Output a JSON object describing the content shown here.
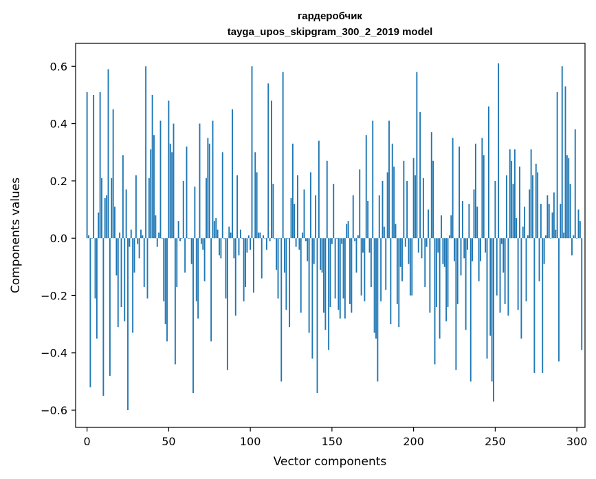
{
  "chart_data": {
    "type": "bar",
    "title": "гардеробчик",
    "subtitle": "tayga_upos_skipgram_300_2_2019 model",
    "xlabel": "Vector components",
    "ylabel": "Components values",
    "xlim": [
      -7,
      305
    ],
    "ylim": [
      -0.66,
      0.68
    ],
    "xticks": [
      0,
      50,
      100,
      150,
      200,
      250,
      300
    ],
    "xtick_labels": [
      "0",
      "50",
      "100",
      "150",
      "200",
      "250",
      "300"
    ],
    "yticks": [
      -0.6,
      -0.4,
      -0.2,
      0.0,
      0.2,
      0.4,
      0.6
    ],
    "ytick_labels": [
      "−0.6",
      "−0.4",
      "−0.2",
      "0.0",
      "0.2",
      "0.4",
      "0.6"
    ],
    "bar_color": "#1f77b4",
    "grid": false,
    "values": [
      0.51,
      0.01,
      -0.52,
      0.0,
      0.5,
      -0.21,
      -0.35,
      0.09,
      0.51,
      0.21,
      -0.55,
      0.14,
      0.15,
      0.59,
      -0.48,
      0.21,
      0.45,
      0.11,
      -0.13,
      -0.31,
      0.02,
      -0.24,
      0.29,
      -0.29,
      0.17,
      -0.6,
      -0.03,
      0.03,
      -0.33,
      -0.12,
      0.22,
      -0.02,
      -0.07,
      0.03,
      0.01,
      -0.17,
      0.6,
      -0.21,
      0.21,
      0.31,
      0.5,
      0.36,
      0.08,
      -0.03,
      0.02,
      0.41,
      0.0,
      -0.22,
      -0.3,
      -0.36,
      0.48,
      0.33,
      0.3,
      0.4,
      -0.44,
      -0.17,
      0.06,
      -0.01,
      0.0,
      0.2,
      -0.12,
      0.32,
      0.0,
      0.0,
      -0.09,
      -0.54,
      0.18,
      -0.22,
      -0.28,
      0.4,
      -0.02,
      -0.04,
      -0.15,
      0.21,
      0.35,
      0.33,
      -0.36,
      0.41,
      0.06,
      0.07,
      0.03,
      -0.06,
      -0.07,
      0.3,
      0.0,
      -0.21,
      -0.46,
      0.04,
      0.02,
      0.45,
      -0.07,
      -0.27,
      0.22,
      -0.06,
      0.03,
      0.0,
      -0.22,
      -0.17,
      -0.05,
      0.01,
      -0.04,
      0.6,
      -0.19,
      0.3,
      0.23,
      0.02,
      0.02,
      -0.14,
      0.01,
      0.0,
      -0.04,
      0.54,
      -0.01,
      0.48,
      0.19,
      0.0,
      -0.11,
      -0.21,
      0.0,
      -0.5,
      0.58,
      -0.12,
      -0.25,
      0.0,
      -0.31,
      0.14,
      0.33,
      0.12,
      -0.03,
      0.22,
      -0.04,
      -0.26,
      0.02,
      0.17,
      -0.01,
      -0.08,
      -0.33,
      0.23,
      -0.42,
      -0.09,
      0.15,
      -0.54,
      0.34,
      -0.11,
      -0.12,
      -0.26,
      -0.32,
      0.27,
      -0.39,
      -0.24,
      -0.02,
      0.19,
      -0.21,
      0.0,
      -0.25,
      -0.28,
      -0.02,
      -0.21,
      -0.28,
      0.05,
      0.06,
      -0.23,
      -0.26,
      0.15,
      -0.01,
      -0.12,
      0.01,
      0.24,
      -0.2,
      -0.05,
      -0.22,
      0.36,
      0.13,
      -0.05,
      -0.17,
      0.41,
      -0.33,
      -0.35,
      -0.5,
      0.15,
      -0.22,
      0.2,
      0.04,
      -0.18,
      0.23,
      0.41,
      -0.3,
      0.33,
      0.25,
      0.05,
      -0.23,
      -0.31,
      -0.1,
      -0.15,
      0.27,
      -0.03,
      0.2,
      -0.09,
      -0.2,
      -0.2,
      0.28,
      0.22,
      0.58,
      -0.05,
      0.44,
      -0.07,
      0.21,
      -0.17,
      -0.03,
      0.1,
      -0.26,
      0.37,
      0.27,
      -0.44,
      -0.24,
      -0.05,
      -0.35,
      0.08,
      -0.09,
      -0.1,
      -0.29,
      -0.24,
      0.01,
      0.08,
      0.35,
      -0.08,
      -0.46,
      -0.23,
      0.32,
      -0.13,
      0.13,
      -0.07,
      -0.32,
      -0.04,
      0.12,
      -0.5,
      -0.08,
      0.17,
      0.33,
      0.11,
      -0.15,
      -0.08,
      0.35,
      0.29,
      -0.05,
      -0.42,
      0.46,
      -0.34,
      -0.5,
      -0.57,
      0.2,
      -0.2,
      0.61,
      -0.26,
      -0.02,
      -0.12,
      -0.23,
      0.22,
      -0.27,
      0.31,
      0.27,
      0.19,
      0.31,
      0.07,
      -0.25,
      0.25,
      -0.35,
      0.04,
      0.11,
      -0.22,
      0.01,
      0.17,
      0.31,
      0.22,
      -0.47,
      0.26,
      0.23,
      -0.15,
      0.12,
      -0.47,
      -0.09,
      0.01,
      0.15,
      0.12,
      0.0,
      0.09,
      0.16,
      0.03,
      0.51,
      -0.43,
      0.12,
      0.6,
      0.02,
      0.53,
      0.29,
      0.28,
      0.19,
      -0.06,
      0.01,
      0.38,
      0.0,
      0.1,
      0.06,
      -0.39
    ]
  }
}
